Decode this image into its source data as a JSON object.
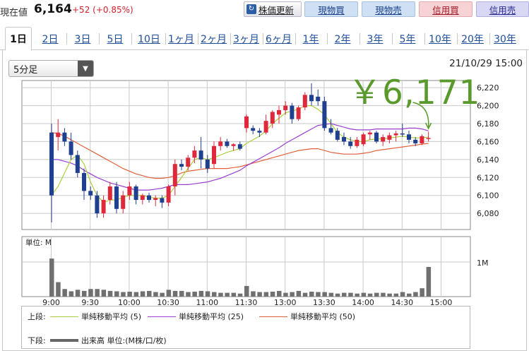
{
  "header": {
    "price_label": "現在値",
    "price_value": "6,164",
    "price_change": "+52 (+0.85%)",
    "buttons": {
      "update": "株価更新",
      "spot_buy": "現物買",
      "spot_sell": "現物売",
      "margin_buy": "信用買",
      "margin_sell": "信用売"
    }
  },
  "tabs": [
    "1日",
    "2日",
    "3日",
    "5日",
    "10日",
    "1ヶ月",
    "2ヶ月",
    "3ヶ月",
    "6ヶ月",
    "1年",
    "2年",
    "3年",
    "5年",
    "10年",
    "20年",
    "30年"
  ],
  "active_tab": "1日",
  "interval_select": "5分足",
  "datetime": "21/10/29 15:00",
  "annotation_price": "￥6,171",
  "colors": {
    "up": "#e0283c",
    "down": "#1f3f8f",
    "ma5": "#a9cf3e",
    "ma25": "#9b3fd1",
    "ma50": "#e0603a",
    "volume": "#707070",
    "annotation": "#5a9a2c",
    "grid": "#c9c9c9"
  },
  "chart_data": {
    "type": "candlestick",
    "price_ticks": [
      "6,220",
      "6,200",
      "6,180",
      "6,160",
      "6,140",
      "6,120",
      "6,100",
      "6,080"
    ],
    "price_tick_values": [
      6220,
      6200,
      6180,
      6160,
      6140,
      6120,
      6100,
      6080
    ],
    "ylim": [
      6062,
      6228
    ],
    "time_ticks": [
      "9:00",
      "9:30",
      "10:00",
      "10:30",
      "11:00",
      "11:30",
      "13:00",
      "13:30",
      "14:00",
      "14:30",
      "15:00"
    ],
    "volume_label": "単位: M",
    "volume_tick": "1M",
    "candles": [
      {
        "o": 6170,
        "h": 6180,
        "l": 6070,
        "c": 6100
      },
      {
        "o": 6165,
        "h": 6185,
        "l": 6150,
        "c": 6170
      },
      {
        "o": 6170,
        "h": 6175,
        "l": 6155,
        "c": 6160
      },
      {
        "o": 6160,
        "h": 6170,
        "l": 6140,
        "c": 6145
      },
      {
        "o": 6145,
        "h": 6150,
        "l": 6120,
        "c": 6125
      },
      {
        "o": 6125,
        "h": 6130,
        "l": 6095,
        "c": 6105
      },
      {
        "o": 6105,
        "h": 6110,
        "l": 6095,
        "c": 6100
      },
      {
        "o": 6100,
        "h": 6105,
        "l": 6075,
        "c": 6080
      },
      {
        "o": 6080,
        "h": 6100,
        "l": 6075,
        "c": 6095
      },
      {
        "o": 6095,
        "h": 6115,
        "l": 6090,
        "c": 6110
      },
      {
        "o": 6110,
        "h": 6115,
        "l": 6080,
        "c": 6085
      },
      {
        "o": 6085,
        "h": 6105,
        "l": 6080,
        "c": 6100
      },
      {
        "o": 6100,
        "h": 6115,
        "l": 6095,
        "c": 6110
      },
      {
        "o": 6110,
        "h": 6112,
        "l": 6090,
        "c": 6095
      },
      {
        "o": 6095,
        "h": 6102,
        "l": 6090,
        "c": 6100
      },
      {
        "o": 6100,
        "h": 6103,
        "l": 6092,
        "c": 6095
      },
      {
        "o": 6095,
        "h": 6100,
        "l": 6088,
        "c": 6097
      },
      {
        "o": 6097,
        "h": 6100,
        "l": 6086,
        "c": 6092
      },
      {
        "o": 6092,
        "h": 6112,
        "l": 6088,
        "c": 6110
      },
      {
        "o": 6110,
        "h": 6140,
        "l": 6100,
        "c": 6135
      },
      {
        "o": 6135,
        "h": 6140,
        "l": 6128,
        "c": 6132
      },
      {
        "o": 6132,
        "h": 6145,
        "l": 6128,
        "c": 6142
      },
      {
        "o": 6142,
        "h": 6155,
        "l": 6136,
        "c": 6150
      },
      {
        "o": 6150,
        "h": 6165,
        "l": 6130,
        "c": 6140
      },
      {
        "o": 6140,
        "h": 6145,
        "l": 6125,
        "c": 6130
      },
      {
        "o": 6135,
        "h": 6160,
        "l": 6130,
        "c": 6155
      },
      {
        "o": 6155,
        "h": 6165,
        "l": 6150,
        "c": 6160
      },
      {
        "o": 6160,
        "h": 6163,
        "l": 6153,
        "c": 6155
      },
      {
        "o": 6155,
        "h": 6158,
        "l": 6150,
        "c": 6157
      },
      {
        "o": 6157,
        "h": 6160,
        "l": 6150,
        "c": 6152
      },
      {
        "o": 6175,
        "h": 6190,
        "l": 6170,
        "c": 6188
      },
      {
        "o": 6175,
        "h": 6178,
        "l": 6168,
        "c": 6172
      },
      {
        "o": 6172,
        "h": 6175,
        "l": 6165,
        "c": 6170
      },
      {
        "o": 6170,
        "h": 6190,
        "l": 6168,
        "c": 6183
      },
      {
        "o": 6180,
        "h": 6195,
        "l": 6175,
        "c": 6193
      },
      {
        "o": 6190,
        "h": 6200,
        "l": 6180,
        "c": 6195
      },
      {
        "o": 6195,
        "h": 6205,
        "l": 6190,
        "c": 6200
      },
      {
        "o": 6200,
        "h": 6203,
        "l": 6180,
        "c": 6185
      },
      {
        "o": 6185,
        "h": 6200,
        "l": 6183,
        "c": 6198
      },
      {
        "o": 6198,
        "h": 6215,
        "l": 6195,
        "c": 6212
      },
      {
        "o": 6212,
        "h": 6225,
        "l": 6200,
        "c": 6205
      },
      {
        "o": 6210,
        "h": 6218,
        "l": 6200,
        "c": 6205
      },
      {
        "o": 6205,
        "h": 6210,
        "l": 6172,
        "c": 6175
      },
      {
        "o": 6175,
        "h": 6185,
        "l": 6168,
        "c": 6170
      },
      {
        "o": 6172,
        "h": 6175,
        "l": 6160,
        "c": 6162
      },
      {
        "o": 6165,
        "h": 6170,
        "l": 6156,
        "c": 6160
      },
      {
        "o": 6160,
        "h": 6165,
        "l": 6152,
        "c": 6155
      },
      {
        "o": 6155,
        "h": 6165,
        "l": 6153,
        "c": 6162
      },
      {
        "o": 6157,
        "h": 6170,
        "l": 6155,
        "c": 6168
      },
      {
        "o": 6168,
        "h": 6172,
        "l": 6162,
        "c": 6170
      },
      {
        "o": 6170,
        "h": 6172,
        "l": 6158,
        "c": 6160
      },
      {
        "o": 6160,
        "h": 6168,
        "l": 6155,
        "c": 6165
      },
      {
        "o": 6162,
        "h": 6170,
        "l": 6158,
        "c": 6167
      },
      {
        "o": 6167,
        "h": 6172,
        "l": 6160,
        "c": 6169
      },
      {
        "o": 6169,
        "h": 6180,
        "l": 6165,
        "c": 6168
      },
      {
        "o": 6168,
        "h": 6172,
        "l": 6158,
        "c": 6162
      },
      {
        "o": 6162,
        "h": 6165,
        "l": 6155,
        "c": 6158
      },
      {
        "o": 6158,
        "h": 6168,
        "l": 6156,
        "c": 6166
      },
      {
        "o": 6163,
        "h": 6171,
        "l": 6160,
        "c": 6164
      }
    ],
    "volume": [
      1.0,
      0.38,
      0.2,
      0.14,
      0.18,
      0.15,
      0.2,
      0.2,
      0.18,
      0.15,
      0.14,
      0.12,
      0.13,
      0.12,
      0.14,
      0.15,
      0.12,
      0.1,
      0.18,
      0.15,
      0.15,
      0.12,
      0.13,
      0.15,
      0.14,
      0.12,
      0.1,
      0.1,
      0.1,
      0.08,
      0.28,
      0.14,
      0.12,
      0.12,
      0.13,
      0.15,
      0.1,
      0.12,
      0.15,
      0.1,
      0.13,
      0.12,
      0.12,
      0.1,
      0.08,
      0.1,
      0.1,
      0.08,
      0.1,
      0.08,
      0.1,
      0.1,
      0.08,
      0.08,
      0.12,
      0.08,
      0.12,
      0.22,
      0.78
    ],
    "ma5": [
      6100,
      6110,
      6125,
      6140,
      6145,
      6135,
      6115,
      6100,
      6092,
      6095,
      6095,
      6098,
      6100,
      6100,
      6100,
      6098,
      6097,
      6097,
      6100,
      6110,
      6120,
      6130,
      6140,
      6142,
      6140,
      6142,
      6145,
      6148,
      6150,
      6152,
      6158,
      6162,
      6166,
      6172,
      6180,
      6186,
      6192,
      6194,
      6196,
      6200,
      6200,
      6196,
      6190,
      6180,
      6170,
      6165,
      6162,
      6160,
      6160,
      6162,
      6163,
      6163,
      6164,
      6165,
      6166,
      6165,
      6164,
      6164,
      6165
    ],
    "ma25": [
      6140,
      6140,
      6138,
      6136,
      6133,
      6128,
      6124,
      6120,
      6117,
      6114,
      6112,
      6110,
      6108,
      6106,
      6106,
      6106,
      6107,
      6108,
      6110,
      6112,
      6112,
      6112,
      6113,
      6114,
      6115,
      6117,
      6119,
      6122,
      6125,
      6128,
      6133,
      6137,
      6141,
      6145,
      6149,
      6153,
      6158,
      6162,
      6166,
      6170,
      6174,
      6178,
      6179,
      6180,
      6178,
      6176,
      6174,
      6173,
      6173,
      6173,
      6174,
      6174,
      6174,
      6174,
      6174,
      6175,
      6175,
      6174,
      6172
    ],
    "ma50": [
      6170,
      6169,
      6166,
      6162,
      6158,
      6154,
      6150,
      6146,
      6142,
      6138,
      6134,
      6130,
      6127,
      6124,
      6122,
      6120,
      6119,
      6119,
      6120,
      6122,
      6125,
      6127,
      6128,
      6129,
      6130,
      6130,
      6130,
      6130,
      6131,
      6132,
      6134,
      6136,
      6138,
      6140,
      6142,
      6144,
      6146,
      6148,
      6150,
      6151,
      6152,
      6152,
      6150,
      6148,
      6147,
      6146,
      6146,
      6146,
      6147,
      6148,
      6150,
      6151,
      6152,
      6153,
      6154,
      6155,
      6156,
      6157,
      6158
    ]
  },
  "legend": {
    "upper_label": "上段:",
    "lower_label": "下段:",
    "ma5": "単純移動平均 (5)",
    "ma25": "単純移動平均 (25)",
    "ma50": "単純移動平均 (50)",
    "volume": "出来高 単位:(M株/口/枚)"
  }
}
